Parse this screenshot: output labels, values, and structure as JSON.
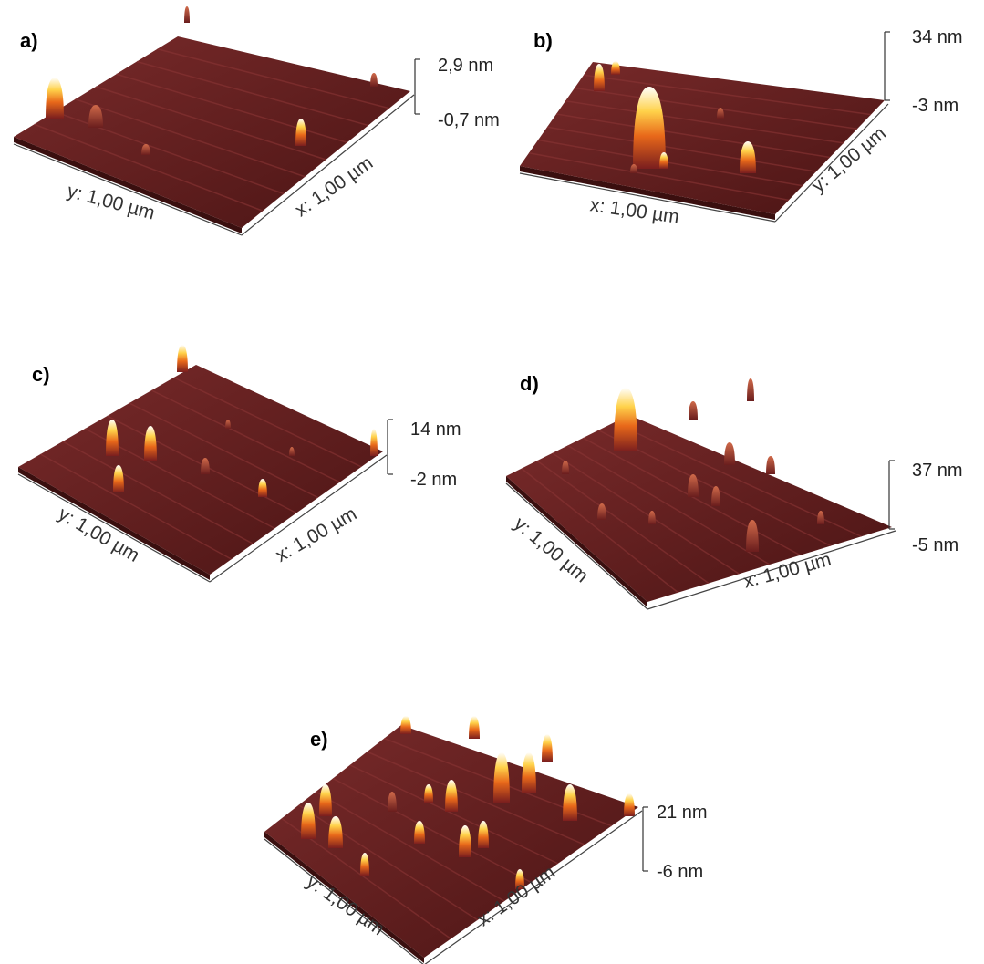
{
  "panels": [
    {
      "label": "a)",
      "z_max": "2,9 nm",
      "z_min": "-0,7 nm",
      "x_axis": "x: 1,00 µm",
      "y_axis": "y: 1,00 µm"
    },
    {
      "label": "b)",
      "z_max": "34 nm",
      "z_min": "-3 nm",
      "x_axis": "x: 1,00 µm",
      "y_axis": "y: 1,00 µm"
    },
    {
      "label": "c)",
      "z_max": "14 nm",
      "z_min": "-2 nm",
      "x_axis": "x: 1,00 µm",
      "y_axis": "y: 1,00 µm"
    },
    {
      "label": "d)",
      "z_max": "37 nm",
      "z_min": "-5 nm",
      "x_axis": "x: 1,00 µm",
      "y_axis": "y: 1,00 µm"
    },
    {
      "label": "e)",
      "z_max": "21 nm",
      "z_min": "-6 nm",
      "x_axis": "x: 1,00 µm",
      "y_axis": "y: 1,00 µm"
    }
  ]
}
